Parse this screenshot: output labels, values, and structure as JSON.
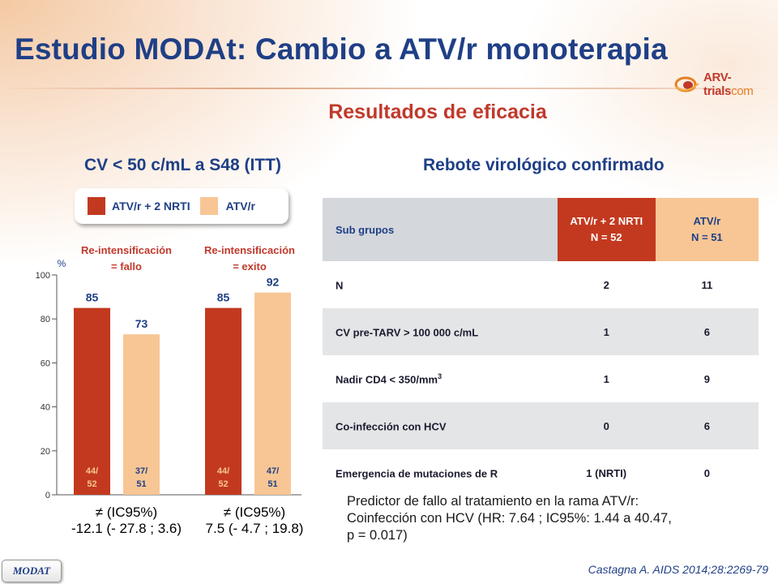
{
  "header": {
    "title": "Estudio MODAt: Cambio a ATV/r monoterapia",
    "logo_text": "ARV-trials",
    "logo_domain": "com"
  },
  "subtitle": "Resultados de eficacia",
  "left": {
    "heading": "CV < 50 c/mL a S48 (ITT)",
    "legend": [
      {
        "label": "ATV/r + 2 NRTI",
        "color": "#c3391f"
      },
      {
        "label": "ATV/r",
        "color": "#f8c695"
      }
    ],
    "groups": [
      {
        "line1": "Re-intensificación",
        "line2": "= fallo",
        "diff_line1": "≠ (IC95%)",
        "diff_line2": "-12.1 (- 27.8 ; 3.6)"
      },
      {
        "line1": "Re-intensificación",
        "line2": "= exito",
        "diff_line1": "≠ (IC95%)",
        "diff_line2": "7.5 (- 4.7 ; 19.8)"
      }
    ]
  },
  "chart_data": {
    "type": "bar",
    "ylabel": "%",
    "ylim": [
      0,
      100
    ],
    "yticks": [
      0,
      20,
      40,
      60,
      80,
      100
    ],
    "categories": [
      "Re-intensificación = fallo",
      "Re-intensificación = exito"
    ],
    "series": [
      {
        "name": "ATV/r + 2 NRTI",
        "color": "#c3391f",
        "values": [
          85,
          85
        ],
        "fractions": [
          "44/ 52",
          "44/ 52"
        ]
      },
      {
        "name": "ATV/r",
        "color": "#f8c695",
        "values": [
          73,
          92
        ],
        "fractions": [
          "37/ 51",
          "47/ 51"
        ]
      }
    ]
  },
  "right": {
    "heading": "Rebote virológico confirmado",
    "table": {
      "header": {
        "col0": "Sub grupos",
        "col1_line1": "ATV/r + 2 NRTI",
        "col1_line2": "N = 52",
        "col2_line1": "ATV/r",
        "col2_line2": "N = 51"
      },
      "rows": [
        {
          "label": "N",
          "sup": "",
          "a": "2",
          "b": "11"
        },
        {
          "label": "CV pre-TARV > 100 000 c/mL",
          "sup": "",
          "a": "1",
          "b": "6"
        },
        {
          "label": "Nadir CD4 < 350/mm",
          "sup": "3",
          "a": "1",
          "b": "9"
        },
        {
          "label": "Co-infección con HCV",
          "sup": "",
          "a": "0",
          "b": "6"
        },
        {
          "label": "Emergencia de mutaciones de R",
          "sup": "",
          "a": "1 (NRTI)",
          "b": "0"
        }
      ]
    }
  },
  "predictor": {
    "line1": "Predictor de fallo al tratamiento en la rama ATV/r:",
    "line2": "Coinfección con HCV (HR: 7.64 ; IC95%: 1.44 a 40.47,",
    "line3": "p = 0.017)"
  },
  "citation": "Castagna A. AIDS 2014;28:2269-79",
  "badge": "MODAT"
}
